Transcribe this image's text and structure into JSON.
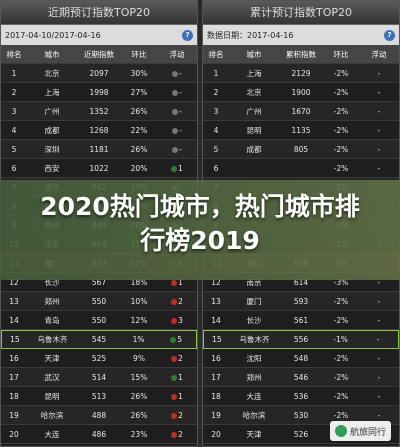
{
  "left": {
    "title": "近期预订指数TOP20",
    "date_range": "2017-04-10/2017-04-16",
    "headers": [
      "排名",
      "城市",
      "近期指数",
      "环比",
      "浮动"
    ],
    "rows": [
      [
        "1",
        "北京",
        "2097",
        "30%",
        "-"
      ],
      [
        "2",
        "上海",
        "1998",
        "27%",
        "-"
      ],
      [
        "3",
        "广州",
        "1352",
        "26%",
        "-"
      ],
      [
        "4",
        "成都",
        "1268",
        "22%",
        "-"
      ],
      [
        "5",
        "深圳",
        "1181",
        "26%",
        "-"
      ],
      [
        "6",
        "西安",
        "1022",
        "20%",
        "1"
      ],
      [
        "7",
        "重庆",
        "942",
        "17%",
        "-"
      ],
      [
        "8",
        "杭州",
        "842",
        "28%",
        "1"
      ],
      [
        "9",
        "杭州",
        "834",
        "20%",
        "-"
      ],
      [
        "10",
        "南京",
        "658",
        "21%",
        "2"
      ],
      [
        "11",
        "厦门",
        "573",
        "31%",
        "3"
      ],
      [
        "12",
        "长沙",
        "567",
        "18%",
        "1"
      ],
      [
        "13",
        "郑州",
        "550",
        "10%",
        "2"
      ],
      [
        "14",
        "青岛",
        "550",
        "12%",
        "3"
      ],
      [
        "15",
        "乌鲁木齐",
        "545",
        "1%",
        "5"
      ],
      [
        "16",
        "天津",
        "525",
        "9%",
        "2"
      ],
      [
        "17",
        "武汉",
        "514",
        "15%",
        "1"
      ],
      [
        "18",
        "昆明",
        "513",
        "26%",
        "1"
      ],
      [
        "19",
        "哈尔滨",
        "488",
        "26%",
        "2"
      ],
      [
        "20",
        "大连",
        "486",
        "23%",
        "2"
      ]
    ],
    "trend": [
      "flat",
      "flat",
      "flat",
      "flat",
      "flat",
      "up",
      "flat",
      "up",
      "flat",
      "up",
      "up",
      "down",
      "down",
      "down",
      "up",
      "down",
      "up",
      "down",
      "down",
      "down"
    ]
  },
  "right": {
    "title": "累计预订指数TOP20",
    "date_range": "数据日期：2017-04-16",
    "headers": [
      "排名",
      "城市",
      "累积指数",
      "环比",
      "浮动"
    ],
    "rows": [
      [
        "1",
        "上海",
        "2129",
        "-2%",
        "-"
      ],
      [
        "2",
        "北京",
        "1900",
        "-2%",
        "-"
      ],
      [
        "3",
        "广州",
        "1670",
        "-2%",
        "-"
      ],
      [
        "4",
        "昆明",
        "1135",
        "-2%",
        "-"
      ],
      [
        "5",
        "成都",
        "805",
        "-2%",
        "-"
      ],
      [
        "6",
        "",
        "",
        "-2%",
        "-"
      ],
      [
        "7",
        "",
        "",
        "-2%",
        "-"
      ],
      [
        "8",
        "",
        "",
        "-2%",
        "-"
      ],
      [
        "9",
        "",
        "",
        "-2%",
        "-"
      ],
      [
        "10",
        "",
        "",
        "-2%",
        "-"
      ],
      [
        "11",
        "海口",
        "628",
        "-2%",
        "-"
      ],
      [
        "12",
        "南京",
        "614",
        "-3%",
        "-"
      ],
      [
        "13",
        "厦门",
        "593",
        "-2%",
        "-"
      ],
      [
        "14",
        "长沙",
        "561",
        "-2%",
        "-"
      ],
      [
        "15",
        "乌鲁木齐",
        "556",
        "-1%",
        "-"
      ],
      [
        "16",
        "沈阳",
        "548",
        "-2%",
        "-"
      ],
      [
        "17",
        "郑州",
        "546",
        "-2%",
        "-"
      ],
      [
        "18",
        "大连",
        "536",
        "-2%",
        "-"
      ],
      [
        "19",
        "哈尔滨",
        "530",
        "-2%",
        "-"
      ],
      [
        "20",
        "天津",
        "526",
        "-2%",
        "-"
      ]
    ]
  },
  "headline": "2020热门城市，热门城市排行榜2019",
  "watermark": "航旅同行",
  "highlight": {
    "red_row": "11",
    "green_row": "15"
  },
  "colors": {
    "highlight_red": "#d04020",
    "highlight_green": "#8bc34a",
    "help_icon": "#3c6fc0"
  }
}
